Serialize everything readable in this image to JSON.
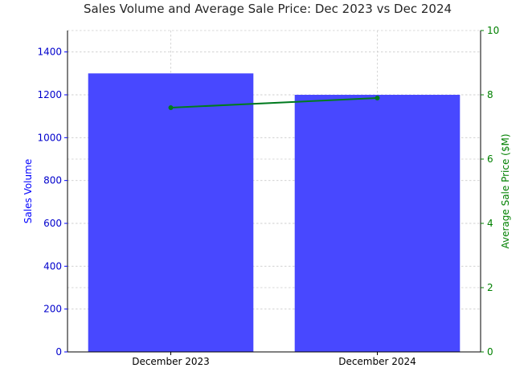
{
  "chart_data": {
    "type": "bar",
    "title": "Sales Volume and Average Sale Price: Dec 2023 vs Dec 2024",
    "categories": [
      "December 2023",
      "December 2024"
    ],
    "series": [
      {
        "name": "Sales Volume",
        "type": "bar",
        "axis": "left",
        "values": [
          1300,
          1200
        ],
        "color": "#4848ff"
      },
      {
        "name": "Average Sale Price ($M)",
        "type": "line",
        "axis": "right",
        "values": [
          7.6,
          7.9
        ],
        "color": "#007a1f"
      }
    ],
    "ylabel": "Sales Volume",
    "ylabel_right": "Average Sale Price ($M)",
    "ylim": [
      0,
      1500
    ],
    "ylim_right": [
      0,
      10
    ],
    "yticks": [
      0,
      200,
      400,
      600,
      800,
      1000,
      1200,
      1400
    ],
    "yticks_right": [
      0,
      2,
      4,
      6,
      8,
      10
    ],
    "grid": true,
    "left_axis_color": "#0000ff",
    "right_axis_color": "#008000"
  }
}
